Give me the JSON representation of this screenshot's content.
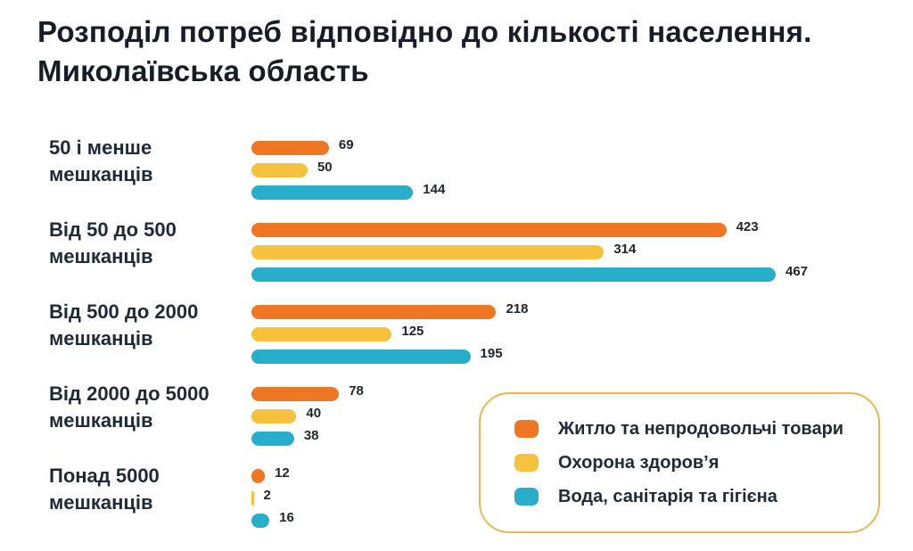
{
  "title": {
    "line1": "Розподіл потреб відповідно до кількості населення.",
    "line2": "Миколаївська область"
  },
  "chart_data": {
    "type": "bar",
    "orientation": "horizontal",
    "title": "Розподіл потреб відповідно до кількості населення. Миколаївська область",
    "categories": [
      "50 і менше мешканців",
      "Від 50 до 500 мешканців",
      "Від 500 до 2000 мешканців",
      "Від 2000 до 5000 мешканців",
      "Понад 5000 мешканців"
    ],
    "category_lines": [
      [
        "50 і менше",
        "мешканців"
      ],
      [
        "Від 50 до 500",
        "мешканців"
      ],
      [
        "Від 500 до 2000",
        "мешканців"
      ],
      [
        "Від 2000 до 5000",
        "мешканців"
      ],
      [
        "Понад 5000",
        "мешканців"
      ]
    ],
    "series": [
      {
        "name": "Житло та непродовольчі товари",
        "color": "#ef7622",
        "values": [
          69,
          423,
          218,
          78,
          12
        ]
      },
      {
        "name": "Охорона здоров’я",
        "color": "#f6c13d",
        "values": [
          50,
          314,
          125,
          40,
          2
        ]
      },
      {
        "name": "Вода, санітарія та гігієна",
        "color": "#28aecb",
        "values": [
          144,
          467,
          195,
          38,
          16
        ]
      }
    ],
    "value_labels": true,
    "xlim": [
      0,
      467
    ],
    "grid": false,
    "legend_position": "bottom-right"
  },
  "legend": {
    "border_color": "#edb54f"
  },
  "colors": {
    "title_text": "#161d28",
    "category_text": "#1e2a38",
    "value_text": "#20262e",
    "background": "#ffffff"
  }
}
